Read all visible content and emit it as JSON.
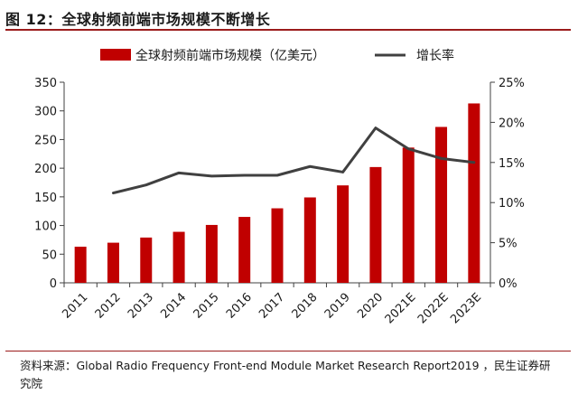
{
  "figure": {
    "title": "图 12：全球射频前端市场规模不断增长",
    "source": "资料来源：Global Radio Frequency Front-end Module Market Research Report2019 ，民生证券研究院"
  },
  "colors": {
    "bar": "#c00000",
    "line": "#404040",
    "rule": "#9b1b1b"
  },
  "chart_data": {
    "type": "bar",
    "title": "",
    "categories": [
      "2011",
      "2012",
      "2013",
      "2014",
      "2015",
      "2016",
      "2017",
      "2018",
      "2019",
      "2020",
      "2021E",
      "2022E",
      "2023E"
    ],
    "series": [
      {
        "name": "全球射频前端市场规模（亿美元）",
        "type": "bar",
        "axis": "left",
        "values": [
          63,
          70,
          79,
          89,
          101,
          115,
          130,
          149,
          170,
          202,
          236,
          272,
          313
        ]
      },
      {
        "name": "增长率",
        "type": "line",
        "axis": "right",
        "unit": "%",
        "values": [
          null,
          11.2,
          12.2,
          13.7,
          13.3,
          13.4,
          13.4,
          14.5,
          13.8,
          19.3,
          16.7,
          15.5,
          15.0
        ]
      }
    ],
    "y_left": {
      "lim": [
        0,
        350
      ],
      "ticks": [
        "0",
        "50",
        "100",
        "150",
        "200",
        "250",
        "300",
        "350"
      ]
    },
    "y_right": {
      "lim": [
        0,
        25
      ],
      "ticks": [
        "0%",
        "5%",
        "10%",
        "15%",
        "20%",
        "25%"
      ]
    },
    "legend": {
      "position": "top-center"
    },
    "grid": false
  }
}
